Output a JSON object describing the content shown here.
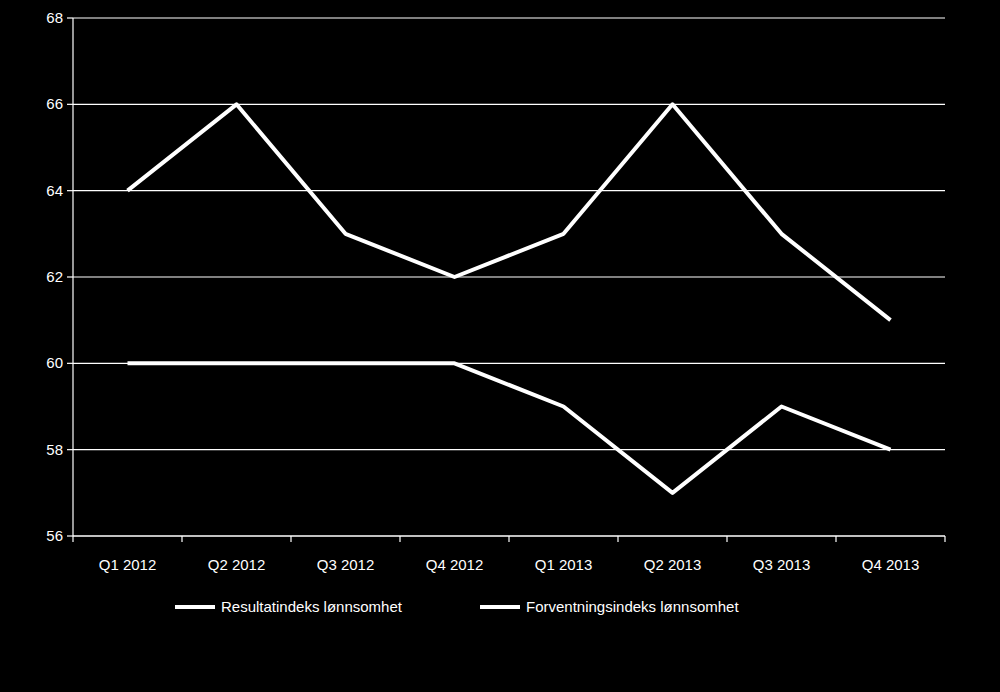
{
  "chart_data": {
    "type": "line",
    "categories": [
      "Q1 2012",
      "Q2 2012",
      "Q3 2012",
      "Q4 2012",
      "Q1 2013",
      "Q2 2013",
      "Q3 2013",
      "Q4 2013"
    ],
    "series": [
      {
        "name": "Resultatindeks lønnsomhet",
        "color": "#ffffff",
        "values": [
          64,
          66,
          63,
          62,
          63,
          66,
          63,
          61
        ]
      },
      {
        "name": "Forventningsindeks lønnsomhet",
        "color": "#ffffff",
        "values": [
          60,
          60,
          60,
          60,
          59,
          57,
          59,
          58
        ]
      }
    ],
    "ylim": [
      56,
      68
    ],
    "yticks": [
      56,
      58,
      60,
      62,
      64,
      66,
      68
    ],
    "grid": true,
    "legend": "bottom"
  }
}
